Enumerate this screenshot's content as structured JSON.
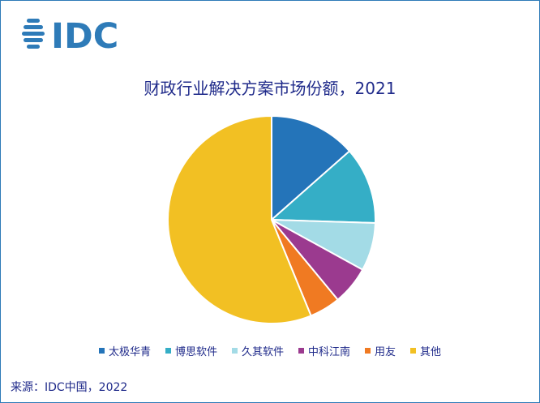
{
  "logo": {
    "text": "IDC",
    "color": "#2e7bb8"
  },
  "chart_data": {
    "type": "pie",
    "title": "财政行业解决方案市场份额，2021",
    "categories": [
      "太极华青",
      "博思软件",
      "久其软件",
      "中科江南",
      "用友",
      "其他"
    ],
    "values": [
      13.5,
      12.0,
      7.5,
      6.0,
      4.8,
      56.2
    ],
    "colors": [
      "#2474b9",
      "#35aec6",
      "#a3dbe6",
      "#9b3a8f",
      "#f07a22",
      "#f2c023"
    ],
    "legend_position": "bottom"
  },
  "source": "来源：IDC中国，2022"
}
